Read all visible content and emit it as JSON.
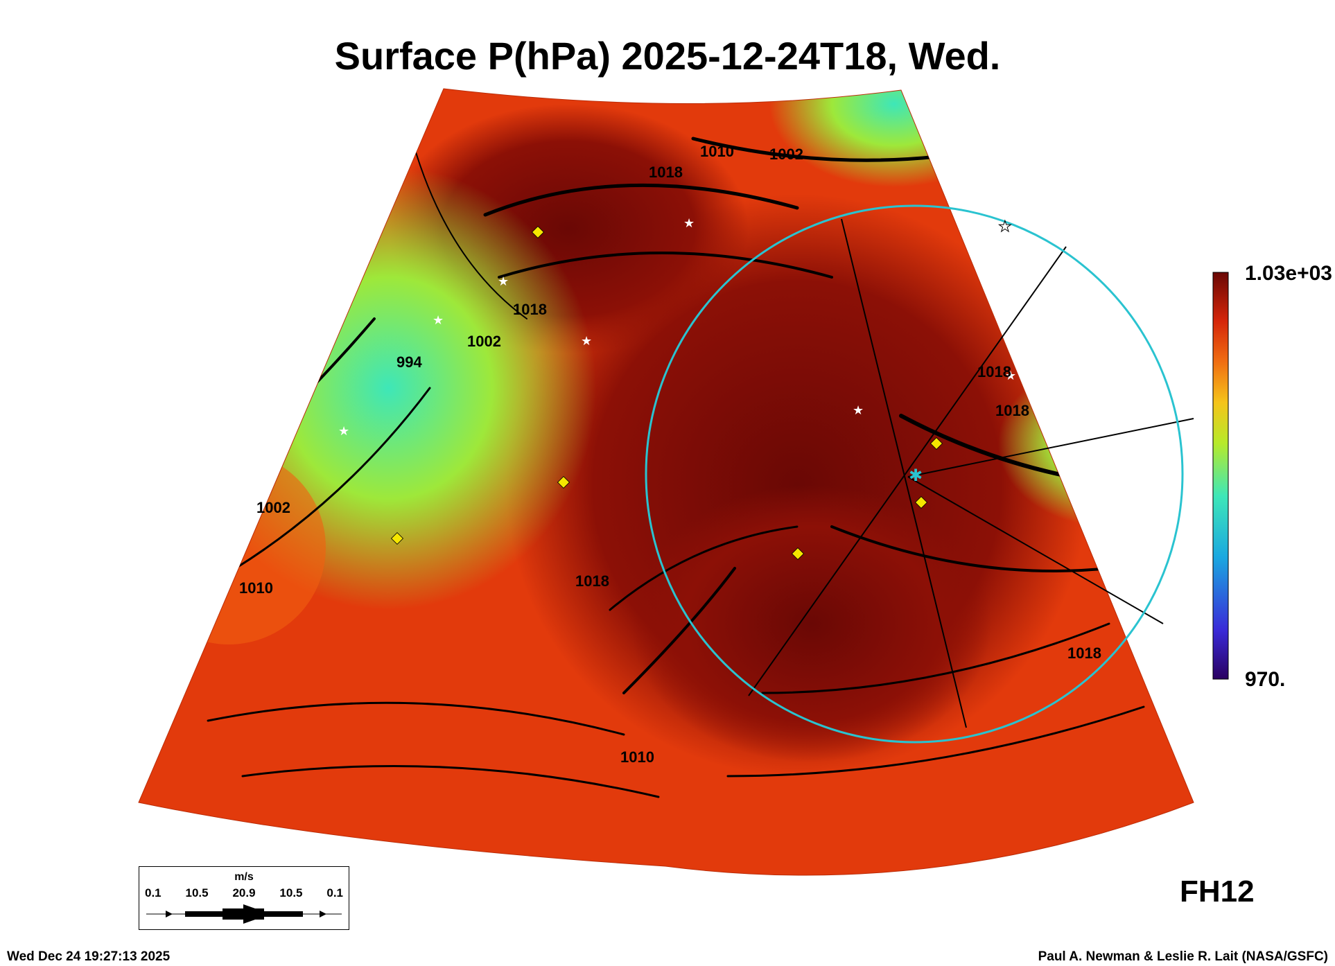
{
  "title": "Surface P(hPa) 2025-12-24T18, Wed.",
  "colorbar": {
    "max_label": "1.03e+03",
    "min_label": "970."
  },
  "forecast_hour": "FH12",
  "legend": {
    "unit": "m/s",
    "ticks": [
      "0.1",
      "10.5",
      "20.9",
      "10.5",
      "0.1"
    ]
  },
  "isobar_labels": [
    "1002",
    "1010",
    "1018",
    "994",
    "1002",
    "1010",
    "1018",
    "1018",
    "1010",
    "1018",
    "1002",
    "1018",
    "1018"
  ],
  "footer": {
    "timestamp": "Wed Dec 24 19:27:13 2025",
    "credit": "Paul A. Newman & Leslie R. Lait (NASA/GSFC)"
  },
  "colors": {
    "high": "#7a0a05",
    "mid": "#e83c0c",
    "low": "#3ee7b8",
    "circle": "#2ac3d0",
    "marker": "#f5e600"
  }
}
